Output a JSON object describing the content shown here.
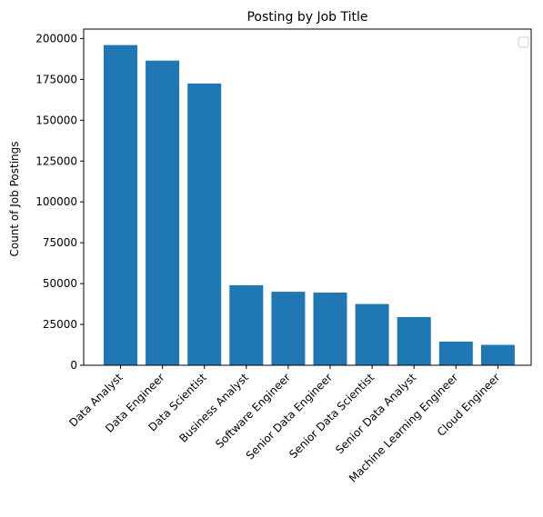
{
  "chart_data": {
    "type": "bar",
    "title": "Posting by Job Title",
    "xlabel": "",
    "ylabel": "Count of Job Postings",
    "categories": [
      "Data Analyst",
      "Data Engineer",
      "Data Scientist",
      "Business Analyst",
      "Software Engineer",
      "Senior Data Engineer",
      "Senior Data Scientist",
      "Senior Data Analyst",
      "Machine Learning Engineer",
      "Cloud Engineer"
    ],
    "values": [
      196000,
      186500,
      172500,
      49000,
      45000,
      44500,
      37500,
      29500,
      14500,
      12500
    ],
    "ylim": [
      0,
      205800
    ],
    "yticks": [
      0,
      25000,
      50000,
      75000,
      100000,
      125000,
      150000,
      175000,
      200000
    ],
    "bar_color": "#1f77b4",
    "grid": false,
    "legend": "top-right (empty)"
  }
}
